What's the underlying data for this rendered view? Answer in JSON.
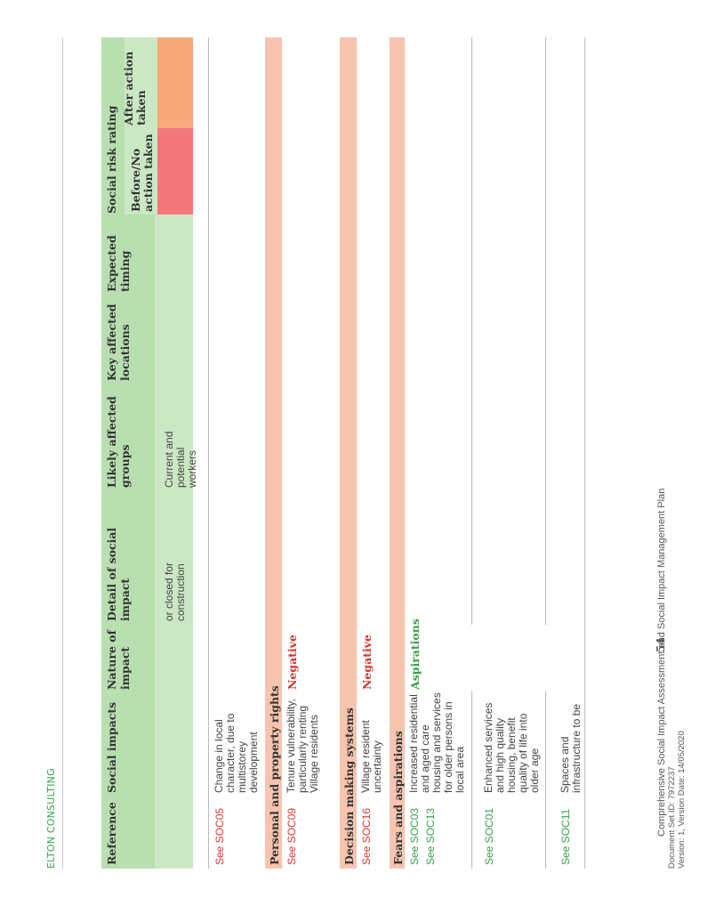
{
  "header": {
    "brand": "ELTON CONSULTING"
  },
  "table": {
    "headers": {
      "reference": "Reference",
      "social_impacts": "Social impacts",
      "nature": [
        "Nature of",
        "impact"
      ],
      "detail": [
        "Detail of social",
        "impact"
      ],
      "groups": [
        "Likely affected",
        "groups"
      ],
      "locations": [
        "Key affected",
        "locations"
      ],
      "timing": [
        "Expected",
        "timing"
      ],
      "risk": "Social risk rating",
      "before": [
        "Before/No",
        "action taken"
      ],
      "after": [
        "After action",
        "taken"
      ]
    },
    "continued_row": {
      "detail": [
        "or closed for",
        "construction"
      ],
      "groups": [
        "Current and",
        "potential",
        "workers"
      ]
    },
    "soc05": {
      "ref": "See SOC05",
      "impact": [
        "Change in local",
        "character, due to",
        "multistorey",
        "development"
      ]
    },
    "sections": {
      "personal": "Personal and property rights",
      "decision": "Decision making systems",
      "fears": "Fears and aspirations"
    },
    "soc09": {
      "ref": "See SOC09",
      "impact": [
        "Tenure vulnerability,",
        "particularly renting",
        "Village residents"
      ],
      "nature": "Negative"
    },
    "soc16": {
      "ref": "See SOC16",
      "impact": [
        "Village resident",
        "uncertainty"
      ],
      "nature": "Negative"
    },
    "soc03": {
      "refs": [
        "See SOC03",
        "See SOC13"
      ],
      "impact": [
        "Increased residential",
        "and aged care",
        "housing and services",
        "for older persons in",
        "local area"
      ],
      "nature": "Aspirations"
    },
    "soc01": {
      "ref": "See SOC01",
      "impact": [
        "Enhanced services",
        "and high quality",
        "housing, benefit",
        "quality of life into",
        "older age"
      ]
    },
    "soc11": {
      "ref": "See SOC11",
      "impact": [
        "Spaces and",
        "infrastructure to be"
      ]
    }
  },
  "footer": {
    "title": "Comprehensive Social Impact Assessment and Social Impact Management Plan",
    "docset": "Document Set ID: 7972237",
    "version": "Version: 1, Version Date: 14/05/2020",
    "page": "54"
  },
  "colors": {
    "header_green": "#b9dfb0",
    "section_salmon": "#f7c4b0",
    "risk_high_red": "#f3787c",
    "risk_medium_orange": "#f9a877",
    "reference_red": "#d9362f",
    "aspiration_green": "#3aa14a"
  }
}
